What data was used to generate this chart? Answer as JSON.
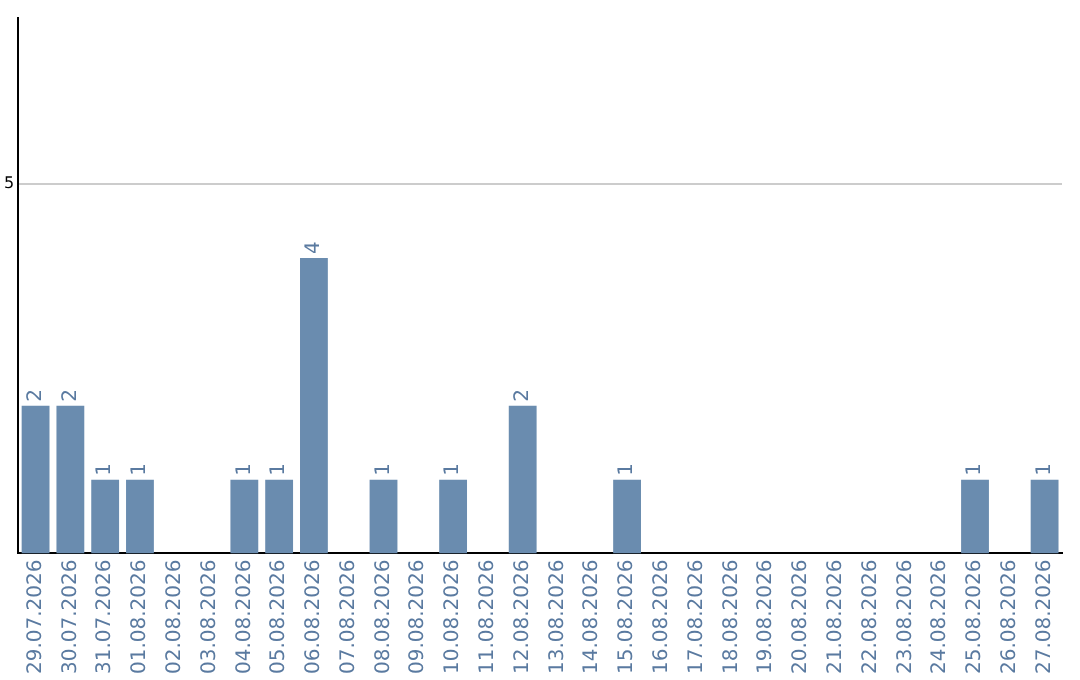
{
  "chart_data": {
    "type": "bar",
    "categories": [
      "29.07.2026",
      "30.07.2026",
      "31.07.2026",
      "01.08.2026",
      "02.08.2026",
      "03.08.2026",
      "04.08.2026",
      "05.08.2026",
      "06.08.2026",
      "07.08.2026",
      "08.08.2026",
      "09.08.2026",
      "10.08.2026",
      "11.08.2026",
      "12.08.2026",
      "13.08.2026",
      "14.08.2026",
      "15.08.2026",
      "16.08.2026",
      "17.08.2026",
      "18.08.2026",
      "19.08.2026",
      "20.08.2026",
      "21.08.2026",
      "22.08.2026",
      "23.08.2026",
      "24.08.2026",
      "25.08.2026",
      "26.08.2026",
      "27.08.2026"
    ],
    "values": [
      2,
      2,
      1,
      1,
      0,
      0,
      1,
      1,
      4,
      0,
      1,
      0,
      1,
      0,
      2,
      0,
      0,
      1,
      0,
      0,
      0,
      0,
      0,
      0,
      0,
      0,
      0,
      1,
      0,
      1
    ],
    "value_labels": [
      "2",
      "2",
      "1",
      "1",
      null,
      null,
      "1",
      "1",
      "4",
      null,
      "1",
      null,
      "1",
      null,
      "2",
      null,
      null,
      "1",
      null,
      null,
      null,
      null,
      null,
      null,
      null,
      null,
      null,
      "1",
      null,
      "1"
    ],
    "color": "#6a8caf",
    "ylim": [
      0,
      7.25
    ],
    "yticks": [
      5
    ],
    "grid": "y",
    "legend": false
  }
}
